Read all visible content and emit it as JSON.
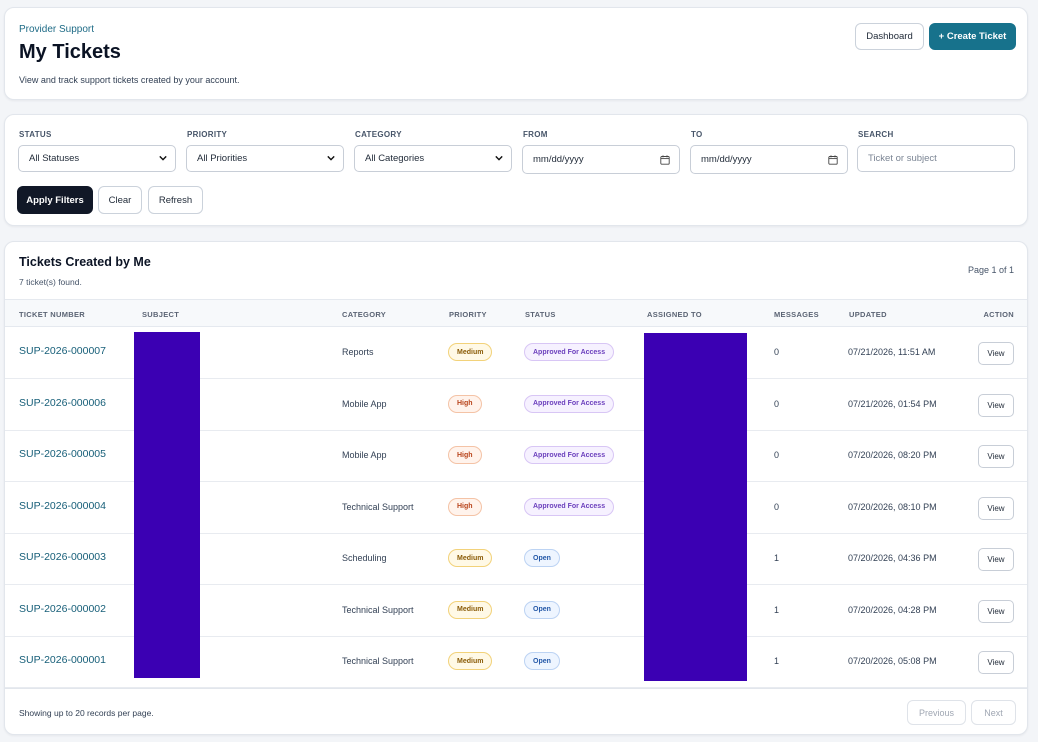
{
  "header": {
    "breadcrumb": "Provider Support",
    "title": "My Tickets",
    "subtitle": "View and track support tickets created by your account.",
    "dashboard_label": "Dashboard",
    "create_label": "+ Create Ticket"
  },
  "filters": {
    "status": {
      "label": "STATUS",
      "value": "All Statuses"
    },
    "priority": {
      "label": "PRIORITY",
      "value": "All Priorities"
    },
    "category": {
      "label": "CATEGORY",
      "value": "All Categories"
    },
    "from": {
      "label": "FROM",
      "value": "mm/dd/yyyy"
    },
    "to": {
      "label": "TO",
      "value": "mm/dd/yyyy"
    },
    "search": {
      "label": "SEARCH",
      "placeholder": "Ticket or subject"
    },
    "apply_label": "Apply Filters",
    "clear_label": "Clear",
    "refresh_label": "Refresh"
  },
  "table": {
    "title": "Tickets Created by Me",
    "count_text": "7 ticket(s) found.",
    "page_text": "Page 1 of 1",
    "columns": [
      "TICKET NUMBER",
      "SUBJECT",
      "CATEGORY",
      "PRIORITY",
      "STATUS",
      "ASSIGNED TO",
      "MESSAGES",
      "UPDATED",
      "ACTION"
    ],
    "rows": [
      {
        "ticket": "SUP-2026-000007",
        "category": "Reports",
        "priority": "Medium",
        "status": "Approved For Access",
        "messages": "0",
        "updated": "07/21/2026, 11:51 AM",
        "action": "View"
      },
      {
        "ticket": "SUP-2026-000006",
        "category": "Mobile App",
        "priority": "High",
        "status": "Approved For Access",
        "messages": "0",
        "updated": "07/21/2026, 01:54 PM",
        "action": "View"
      },
      {
        "ticket": "SUP-2026-000005",
        "category": "Mobile App",
        "priority": "High",
        "status": "Approved For Access",
        "messages": "0",
        "updated": "07/20/2026, 08:20 PM",
        "action": "View"
      },
      {
        "ticket": "SUP-2026-000004",
        "category": "Technical Support",
        "priority": "High",
        "status": "Approved For Access",
        "messages": "0",
        "updated": "07/20/2026, 08:10 PM",
        "action": "View"
      },
      {
        "ticket": "SUP-2026-000003",
        "category": "Scheduling",
        "priority": "Medium",
        "status": "Open",
        "messages": "1",
        "updated": "07/20/2026, 04:36 PM",
        "action": "View"
      },
      {
        "ticket": "SUP-2026-000002",
        "category": "Technical Support",
        "priority": "Medium",
        "status": "Open",
        "messages": "1",
        "updated": "07/20/2026, 04:28 PM",
        "action": "View"
      },
      {
        "ticket": "SUP-2026-000001",
        "category": "Technical Support",
        "priority": "Medium",
        "status": "Open",
        "messages": "1",
        "updated": "07/20/2026, 05:08 PM",
        "action": "View"
      }
    ],
    "footer_text": "Showing up to 20 records per page.",
    "prev_label": "Previous",
    "next_label": "Next"
  },
  "colors": {
    "accent": "#17728c",
    "redaction": "#3b00b3"
  }
}
